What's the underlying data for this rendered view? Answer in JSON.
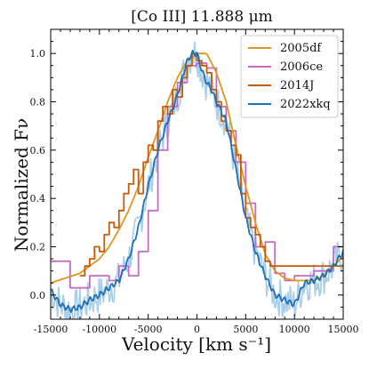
{
  "chart_data": {
    "type": "line",
    "title": "[Co III] 11.888 μm",
    "xlabel": "Velocity [km s⁻¹]",
    "ylabel": "Normalized Fν",
    "xlim": [
      -15000,
      15000
    ],
    "ylim": [
      -0.1,
      1.1
    ],
    "xticks": [
      -15000,
      -10000,
      -5000,
      0,
      5000,
      10000,
      15000
    ],
    "yticks": [
      0.0,
      0.2,
      0.4,
      0.6,
      0.8,
      1.0
    ],
    "grid": false,
    "legend": "top-right",
    "series": [
      {
        "name": "2005df",
        "color": "#e0951f",
        "style": "smooth",
        "x": [
          -15000,
          -13500,
          -12000,
          -11000,
          -10000,
          -9000,
          -8000,
          -7000,
          -6000,
          -5000,
          -4000,
          -3000,
          -2000,
          -1000,
          0,
          1000,
          2000,
          3000,
          4000,
          5000,
          6000,
          7000,
          8000,
          9000,
          10000,
          11000,
          12000,
          13000,
          14000,
          15000
        ],
        "y": [
          0.05,
          0.07,
          0.09,
          0.12,
          0.15,
          0.2,
          0.27,
          0.35,
          0.45,
          0.57,
          0.68,
          0.8,
          0.9,
          0.97,
          1.0,
          1.0,
          0.92,
          0.8,
          0.62,
          0.45,
          0.3,
          0.17,
          0.1,
          0.07,
          0.06,
          0.06,
          0.06,
          0.08,
          0.12,
          0.16
        ]
      },
      {
        "name": "2006ce",
        "color": "#c76bc7",
        "style": "step",
        "x": [
          -15000,
          -13000,
          -11000,
          -9000,
          -8000,
          -7000,
          -6000,
          -5000,
          -4000,
          -3000,
          -2000,
          -1000,
          0,
          1000,
          2000,
          3000,
          4000,
          5000,
          6000,
          7000,
          8000,
          9000,
          10000,
          12000,
          14000
        ],
        "y": [
          0.14,
          0.03,
          0.08,
          0.06,
          0.12,
          0.08,
          0.18,
          0.35,
          0.6,
          0.78,
          0.88,
          0.95,
          0.96,
          0.94,
          0.78,
          0.68,
          0.55,
          0.38,
          0.2,
          0.22,
          0.09,
          0.06,
          0.08,
          0.1,
          0.2
        ]
      },
      {
        "name": "2014J",
        "color": "#c85a0a",
        "style": "step",
        "x": [
          -12000,
          -11500,
          -11000,
          -10500,
          -10000,
          -9500,
          -9000,
          -8500,
          -8000,
          -7500,
          -7000,
          -6500,
          -6000,
          -5500,
          -5000,
          -4500,
          -4000,
          -3500,
          -3000,
          -2500,
          -2000,
          -1500,
          -1000,
          -500,
          0,
          500,
          1000,
          1500,
          2000,
          2500,
          3000,
          3500,
          4000,
          4500,
          5000,
          5500,
          6000,
          6500,
          7000,
          7500
        ],
        "y": [
          0.08,
          0.12,
          0.15,
          0.2,
          0.18,
          0.25,
          0.3,
          0.28,
          0.35,
          0.42,
          0.46,
          0.52,
          0.42,
          0.55,
          0.62,
          0.6,
          0.72,
          0.78,
          0.75,
          0.85,
          0.82,
          0.9,
          0.95,
          1.0,
          0.97,
          0.95,
          0.92,
          0.85,
          0.8,
          0.72,
          0.68,
          0.62,
          0.58,
          0.42,
          0.32,
          0.28,
          0.25,
          0.2,
          0.14,
          0.12
        ]
      },
      {
        "name": "2022xkq",
        "color": "#1f6fb5",
        "style": "smooth",
        "x": [
          -15000,
          -14000,
          -13000,
          -12000,
          -11000,
          -10000,
          -9000,
          -8000,
          -7000,
          -6000,
          -5000,
          -4000,
          -3000,
          -2500,
          -2000,
          -1500,
          -1000,
          -500,
          0,
          500,
          1000,
          1500,
          2000,
          3000,
          4000,
          5000,
          6000,
          7000,
          8000,
          9000,
          10000,
          11000,
          12000,
          13000,
          14000,
          15000
        ],
        "y": [
          0.02,
          -0.04,
          -0.06,
          -0.05,
          -0.02,
          0.0,
          0.03,
          0.06,
          0.15,
          0.28,
          0.45,
          0.6,
          0.72,
          0.77,
          0.83,
          0.9,
          0.97,
          1.0,
          1.0,
          0.93,
          0.88,
          0.85,
          0.8,
          0.72,
          0.52,
          0.32,
          0.18,
          0.08,
          0.0,
          -0.02,
          -0.04,
          0.05,
          0.06,
          0.08,
          0.12,
          0.18
        ]
      },
      {
        "name": "",
        "color": "#8fbfe0",
        "style": "noisy",
        "x": [
          -15000,
          -14000,
          -13000,
          -12000,
          -11000,
          -10000,
          -9000,
          -8000,
          -7000,
          -6000,
          -5000,
          -4000,
          -3000,
          -2500,
          -2000,
          -1500,
          -1000,
          -500,
          0,
          500,
          1000,
          1500,
          2000,
          3000,
          4000,
          5000,
          6000,
          7000,
          8000,
          9000,
          10000,
          11000,
          12000,
          13000,
          14000,
          15000
        ],
        "y": [
          0.02,
          -0.04,
          -0.06,
          -0.05,
          -0.02,
          0.0,
          0.03,
          0.06,
          0.15,
          0.28,
          0.45,
          0.6,
          0.72,
          0.77,
          0.83,
          0.9,
          0.97,
          1.0,
          1.0,
          0.93,
          0.88,
          0.85,
          0.8,
          0.72,
          0.52,
          0.32,
          0.18,
          0.08,
          0.0,
          -0.02,
          -0.04,
          0.05,
          0.06,
          0.08,
          0.12,
          0.18
        ]
      }
    ]
  }
}
